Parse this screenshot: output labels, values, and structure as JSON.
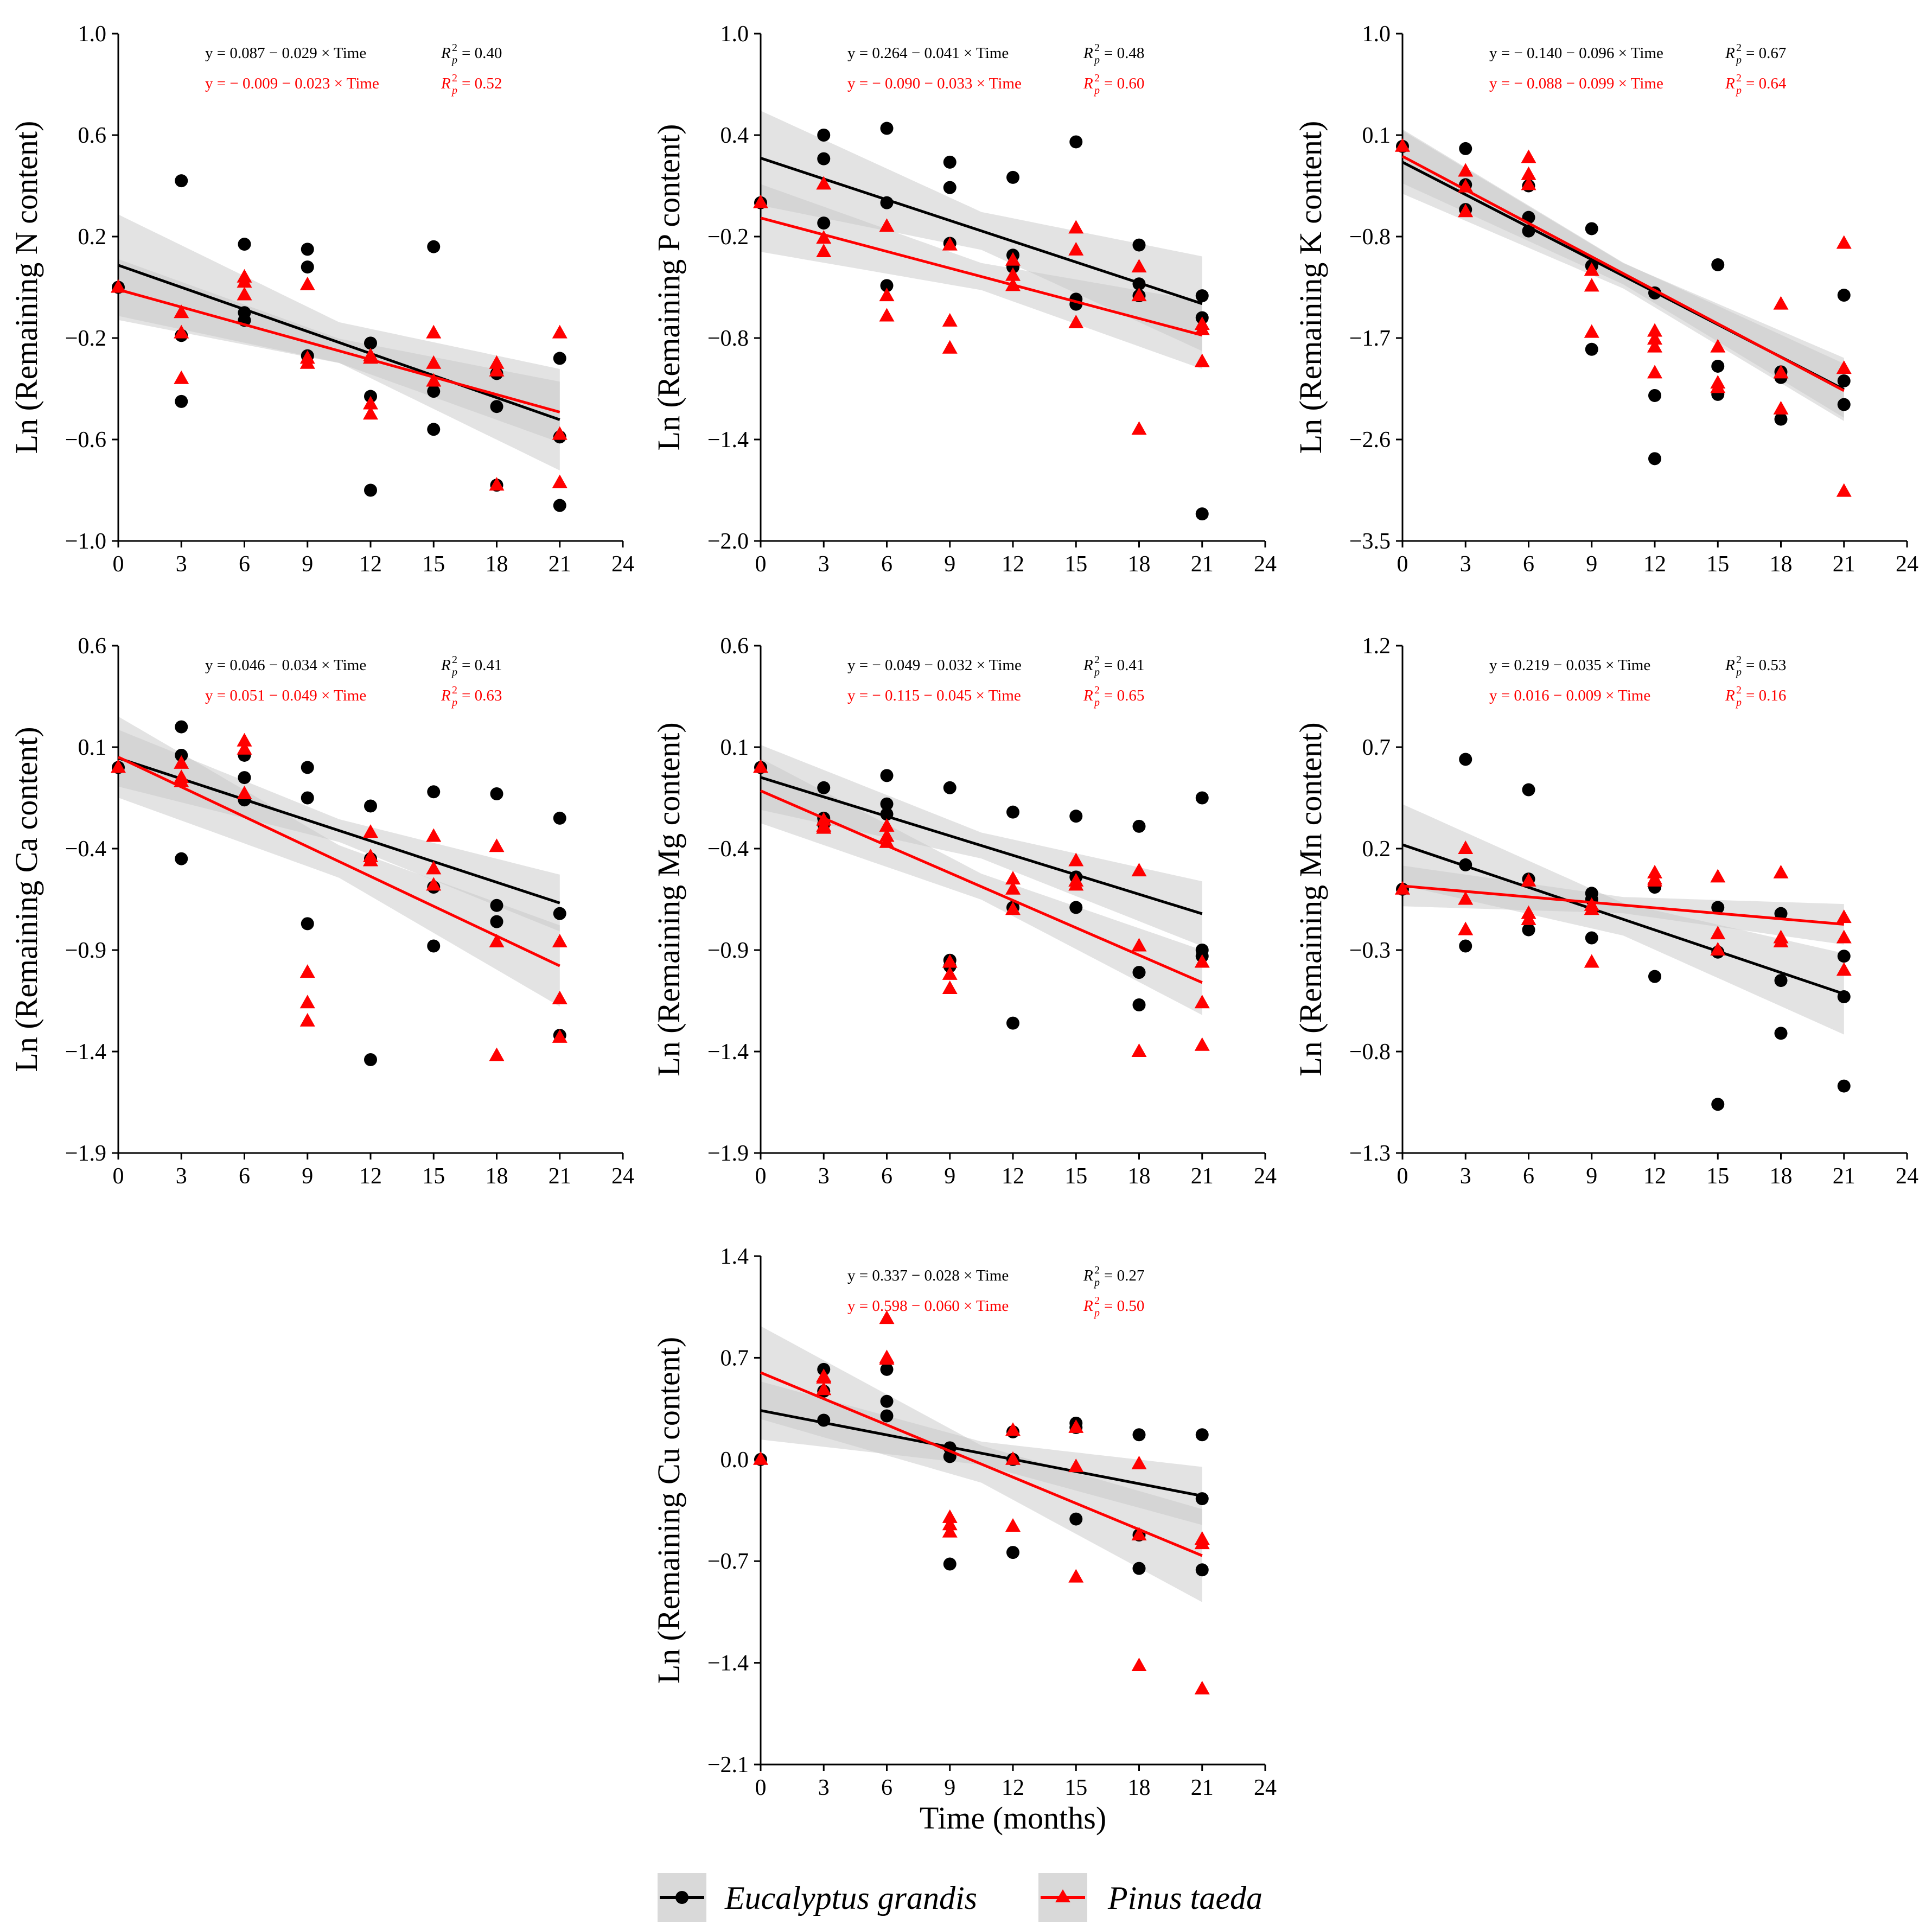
{
  "figure": {
    "x_axis_title": "Time (months)",
    "legend": [
      {
        "label": "Eucalyptus grandis",
        "color": "#000000",
        "marker": "circle"
      },
      {
        "label": "Pinus taeda",
        "color": "#ff0000",
        "marker": "triangle"
      }
    ],
    "colors": {
      "eucalyptus": "#000000",
      "pinus": "#ff0000",
      "ci_band": "#c8c8c8"
    }
  },
  "chart_data": [
    {
      "type": "scatter",
      "ylabel": "Ln (Remaining N content)",
      "ylim": [
        -1.0,
        1.0
      ],
      "yticks": [
        "1.0",
        "0.6",
        "0.2",
        "−0.2",
        "−0.6",
        "−1.0"
      ],
      "ytick_values": [
        1.0,
        0.6,
        0.2,
        -0.2,
        -0.6,
        -1.0
      ],
      "xlim": [
        0,
        24
      ],
      "xticks": [
        "0",
        "3",
        "6",
        "9",
        "12",
        "15",
        "18",
        "21",
        "24"
      ],
      "equations": [
        {
          "series": "Eucalyptus grandis",
          "text": "y = 0.087 − 0.029 × Time",
          "r2": "= 0.40"
        },
        {
          "series": "Pinus taeda",
          "text": "y = − 0.009 − 0.023 × Time",
          "r2": "= 0.52"
        }
      ],
      "series": [
        {
          "name": "Eucalyptus grandis",
          "intercept": 0.087,
          "slope": -0.029,
          "band": 0.2,
          "x": [
            0,
            3,
            3,
            3,
            6,
            6,
            6,
            9,
            9,
            9,
            12,
            12,
            12,
            15,
            15,
            15,
            18,
            18,
            18,
            21,
            21,
            21
          ],
          "y": [
            0,
            0.42,
            -0.19,
            -0.45,
            0.17,
            -0.1,
            -0.13,
            0.15,
            0.08,
            -0.27,
            -0.22,
            -0.43,
            -0.8,
            0.16,
            -0.41,
            -0.56,
            -0.34,
            -0.47,
            -0.78,
            -0.28,
            -0.59,
            -0.86
          ]
        },
        {
          "name": "Pinus taeda",
          "intercept": -0.009,
          "slope": -0.023,
          "band": 0.12,
          "x": [
            0,
            3,
            3,
            3,
            6,
            6,
            6,
            9,
            9,
            9,
            12,
            12,
            12,
            12,
            15,
            15,
            15,
            18,
            18,
            18,
            21,
            21,
            21
          ],
          "y": [
            0,
            -0.1,
            -0.18,
            -0.36,
            0.04,
            0.02,
            -0.03,
            0.01,
            -0.28,
            -0.3,
            -0.27,
            -0.46,
            -0.5,
            -0.28,
            -0.18,
            -0.3,
            -0.37,
            -0.3,
            -0.33,
            -0.78,
            -0.18,
            -0.58,
            -0.77
          ]
        }
      ]
    },
    {
      "type": "scatter",
      "ylabel": "Ln (Remaining P content)",
      "ylim": [
        -2.0,
        1.0
      ],
      "yticks": [
        "1.0",
        "0.4",
        "−0.2",
        "−0.8",
        "−1.4",
        "−2.0"
      ],
      "ytick_values": [
        1.0,
        0.4,
        -0.2,
        -0.8,
        -1.4,
        -2.0
      ],
      "xlim": [
        0,
        24
      ],
      "xticks": [
        "0",
        "3",
        "6",
        "9",
        "12",
        "15",
        "18",
        "21",
        "24"
      ],
      "equations": [
        {
          "series": "Eucalyptus grandis",
          "text": "y = 0.264 − 0.041 × Time",
          "r2": "= 0.48"
        },
        {
          "series": "Pinus taeda",
          "text": "y = − 0.090 − 0.033 × Time",
          "r2": "= 0.60"
        }
      ],
      "series": [
        {
          "name": "Eucalyptus grandis",
          "intercept": 0.264,
          "slope": -0.041,
          "band": 0.28,
          "x": [
            0,
            3,
            3,
            3,
            6,
            6,
            6,
            9,
            9,
            9,
            12,
            12,
            12,
            15,
            15,
            15,
            18,
            18,
            18,
            21,
            21,
            21
          ],
          "y": [
            0,
            0.4,
            0.26,
            -0.12,
            0.44,
            0.0,
            -0.49,
            0.24,
            0.09,
            -0.24,
            0.15,
            -0.31,
            -0.38,
            0.36,
            -0.57,
            -0.6,
            -0.25,
            -0.48,
            -0.55,
            -0.55,
            -0.68,
            -1.84
          ]
        },
        {
          "name": "Pinus taeda",
          "intercept": -0.09,
          "slope": -0.033,
          "band": 0.2,
          "x": [
            0,
            3,
            3,
            3,
            6,
            6,
            6,
            9,
            9,
            9,
            12,
            12,
            12,
            15,
            15,
            15,
            18,
            18,
            18,
            21,
            21,
            21
          ],
          "y": [
            0,
            0.11,
            -0.21,
            -0.29,
            -0.14,
            -0.55,
            -0.67,
            -0.25,
            -0.7,
            -0.86,
            -0.34,
            -0.49,
            -0.43,
            -0.15,
            -0.28,
            -0.71,
            -0.38,
            -0.55,
            -1.34,
            -0.72,
            -0.75,
            -0.94
          ]
        }
      ]
    },
    {
      "type": "scatter",
      "ylabel": "Ln (Remaining K content)",
      "ylim": [
        -3.5,
        1.0
      ],
      "yticks": [
        "1.0",
        "0.1",
        "−0.8",
        "−1.7",
        "−2.6",
        "−3.5"
      ],
      "ytick_values": [
        1.0,
        0.1,
        -0.8,
        -1.7,
        -2.6,
        -3.5
      ],
      "xlim": [
        0,
        24
      ],
      "xticks": [
        "0",
        "3",
        "6",
        "9",
        "12",
        "15",
        "18",
        "21",
        "24"
      ],
      "equations": [
        {
          "series": "Eucalyptus grandis",
          "text": "y = − 0.140 − 0.096 × Time",
          "r2": "= 0.67"
        },
        {
          "series": "Pinus taeda",
          "text": "y = − 0.088 − 0.099 × Time",
          "r2": "= 0.64"
        }
      ],
      "series": [
        {
          "name": "Eucalyptus grandis",
          "intercept": -0.14,
          "slope": -0.096,
          "band": 0.28,
          "x": [
            0,
            3,
            3,
            3,
            6,
            6,
            6,
            9,
            9,
            9,
            12,
            12,
            12,
            15,
            15,
            15,
            18,
            18,
            18,
            21,
            21,
            21
          ],
          "y": [
            0,
            -0.02,
            -0.34,
            -0.56,
            -0.35,
            -0.63,
            -0.75,
            -0.73,
            -1.06,
            -1.8,
            -1.3,
            -2.21,
            -2.77,
            -1.05,
            -1.95,
            -2.2,
            -2.0,
            -2.05,
            -2.42,
            -1.32,
            -2.08,
            -2.29
          ]
        },
        {
          "name": "Pinus taeda",
          "intercept": -0.088,
          "slope": -0.099,
          "band": 0.24,
          "x": [
            0,
            3,
            3,
            3,
            6,
            6,
            6,
            9,
            9,
            9,
            12,
            12,
            12,
            12,
            15,
            15,
            15,
            18,
            18,
            18,
            21,
            21,
            21
          ],
          "y": [
            0,
            -0.22,
            -0.36,
            -0.58,
            -0.1,
            -0.25,
            -0.34,
            -1.1,
            -1.24,
            -1.65,
            -1.64,
            -1.71,
            -2.01,
            -1.78,
            -1.78,
            -2.1,
            -2.14,
            -1.4,
            -2.01,
            -2.33,
            -0.86,
            -1.97,
            -3.06
          ]
        }
      ]
    },
    {
      "type": "scatter",
      "ylabel": "Ln (Remaining Ca content)",
      "ylim": [
        -1.9,
        0.6
      ],
      "yticks": [
        "0.6",
        "0.1",
        "−0.4",
        "−0.9",
        "−1.4",
        "−1.9"
      ],
      "ytick_values": [
        0.6,
        0.1,
        -0.4,
        -0.9,
        -1.4,
        -1.9
      ],
      "xlim": [
        0,
        24
      ],
      "xticks": [
        "0",
        "3",
        "6",
        "9",
        "12",
        "15",
        "18",
        "21",
        "24"
      ],
      "equations": [
        {
          "series": "Eucalyptus grandis",
          "text": "y = 0.046 − 0.034 × Time",
          "r2": "= 0.41"
        },
        {
          "series": "Pinus taeda",
          "text": "y = 0.051 − 0.049 × Time",
          "r2": "= 0.63"
        }
      ],
      "series": [
        {
          "name": "Eucalyptus grandis",
          "intercept": 0.046,
          "slope": -0.034,
          "band": 0.14,
          "x": [
            0,
            3,
            3,
            3,
            6,
            6,
            6,
            9,
            9,
            9,
            12,
            12,
            12,
            15,
            15,
            15,
            18,
            18,
            18,
            21,
            21,
            21
          ],
          "y": [
            0,
            0.2,
            0.06,
            -0.45,
            0.06,
            -0.05,
            -0.16,
            0.0,
            -0.15,
            -0.77,
            -0.19,
            -0.45,
            -1.44,
            -0.12,
            -0.59,
            -0.88,
            -0.13,
            -0.68,
            -0.76,
            -0.25,
            -0.72,
            -1.32
          ]
        },
        {
          "name": "Pinus taeda",
          "intercept": 0.051,
          "slope": -0.049,
          "band": 0.2,
          "x": [
            0,
            3,
            3,
            3,
            6,
            6,
            6,
            9,
            9,
            9,
            12,
            12,
            12,
            15,
            15,
            15,
            18,
            18,
            18,
            21,
            21,
            21
          ],
          "y": [
            0,
            0.02,
            -0.05,
            -0.07,
            0.13,
            0.09,
            -0.13,
            -1.01,
            -1.16,
            -1.25,
            -0.32,
            -0.46,
            -0.44,
            -0.34,
            -0.5,
            -0.58,
            -0.39,
            -0.86,
            -1.42,
            -0.86,
            -1.14,
            -1.33
          ]
        }
      ]
    },
    {
      "type": "scatter",
      "ylabel": "Ln (Remaining Mg content)",
      "ylim": [
        -1.9,
        0.6
      ],
      "yticks": [
        "0.6",
        "0.1",
        "−0.4",
        "−0.9",
        "−1.4",
        "−1.9"
      ],
      "ytick_values": [
        0.6,
        0.1,
        -0.4,
        -0.9,
        -1.4,
        -1.9
      ],
      "xlim": [
        0,
        24
      ],
      "xticks": [
        "0",
        "3",
        "6",
        "9",
        "12",
        "15",
        "18",
        "21",
        "24"
      ],
      "equations": [
        {
          "series": "Eucalyptus grandis",
          "text": "y = − 0.049 − 0.032 × Time",
          "r2": "= 0.41"
        },
        {
          "series": "Pinus taeda",
          "text": "y = − 0.115 − 0.045 × Time",
          "r2": "= 0.65"
        }
      ],
      "series": [
        {
          "name": "Eucalyptus grandis",
          "intercept": -0.049,
          "slope": -0.032,
          "band": 0.16,
          "x": [
            0,
            3,
            3,
            3,
            6,
            6,
            6,
            9,
            9,
            9,
            12,
            12,
            12,
            15,
            15,
            15,
            18,
            18,
            18,
            21,
            21,
            21
          ],
          "y": [
            0,
            -0.1,
            -0.25,
            -0.28,
            -0.04,
            -0.18,
            -0.23,
            -0.1,
            -0.95,
            -0.98,
            -0.22,
            -0.69,
            -1.26,
            -0.24,
            -0.54,
            -0.69,
            -0.29,
            -1.01,
            -1.17,
            -0.15,
            -0.9,
            -0.93
          ]
        },
        {
          "name": "Pinus taeda",
          "intercept": -0.115,
          "slope": -0.045,
          "band": 0.16,
          "x": [
            0,
            3,
            3,
            3,
            6,
            6,
            6,
            9,
            9,
            9,
            12,
            12,
            12,
            15,
            15,
            15,
            18,
            18,
            18,
            21,
            21,
            21
          ],
          "y": [
            0,
            -0.26,
            -0.29,
            -0.3,
            -0.29,
            -0.34,
            -0.37,
            -0.96,
            -1.02,
            -1.09,
            -0.55,
            -0.6,
            -0.7,
            -0.46,
            -0.56,
            -0.58,
            -0.51,
            -0.88,
            -1.4,
            -0.96,
            -1.16,
            -1.37
          ]
        }
      ]
    },
    {
      "type": "scatter",
      "ylabel": "Ln (Remaining Mn content)",
      "ylim": [
        -1.3,
        1.2
      ],
      "yticks": [
        "1.2",
        "0.7",
        "0.2",
        "−0.3",
        "−0.8",
        "−1.3"
      ],
      "ytick_values": [
        1.2,
        0.7,
        0.2,
        -0.3,
        -0.8,
        -1.3
      ],
      "xlim": [
        0,
        24
      ],
      "xticks": [
        "0",
        "3",
        "6",
        "9",
        "12",
        "15",
        "18",
        "21",
        "24"
      ],
      "equations": [
        {
          "series": "Eucalyptus grandis",
          "text": "y = 0.219 − 0.035 × Time",
          "r2": "= 0.53"
        },
        {
          "series": "Pinus taeda",
          "text": "y = 0.016 − 0.009 × Time",
          "r2": "= 0.16"
        }
      ],
      "series": [
        {
          "name": "Eucalyptus grandis",
          "intercept": 0.219,
          "slope": -0.035,
          "band": 0.2,
          "x": [
            0,
            3,
            3,
            3,
            6,
            6,
            6,
            9,
            9,
            9,
            12,
            12,
            12,
            15,
            15,
            15,
            18,
            18,
            18,
            21,
            21,
            21
          ],
          "y": [
            0,
            0.64,
            0.12,
            -0.28,
            0.49,
            0.05,
            -0.2,
            -0.02,
            -0.05,
            -0.24,
            0.01,
            0.02,
            -0.43,
            -0.09,
            -0.31,
            -1.06,
            -0.12,
            -0.45,
            -0.71,
            -0.33,
            -0.53,
            -0.97
          ]
        },
        {
          "name": "Pinus taeda",
          "intercept": 0.016,
          "slope": -0.009,
          "band": 0.1,
          "x": [
            0,
            3,
            3,
            3,
            6,
            6,
            6,
            9,
            9,
            9,
            12,
            12,
            12,
            15,
            15,
            15,
            18,
            18,
            18,
            21,
            21,
            21
          ],
          "y": [
            0,
            0.2,
            -0.05,
            -0.2,
            -0.12,
            -0.15,
            0.04,
            -0.08,
            -0.1,
            -0.36,
            0.05,
            0.08,
            0.04,
            0.06,
            -0.22,
            -0.3,
            0.08,
            -0.24,
            -0.26,
            -0.14,
            -0.24,
            -0.4
          ]
        }
      ]
    },
    {
      "type": "scatter",
      "ylabel": "Ln (Remaining Cu content)",
      "ylim": [
        -2.1,
        1.4
      ],
      "yticks": [
        "1.4",
        "0.7",
        "0.0",
        "−0.7",
        "−1.4",
        "−2.1"
      ],
      "ytick_values": [
        1.4,
        0.7,
        0.0,
        -0.7,
        -1.4,
        -2.1
      ],
      "xlim": [
        0,
        24
      ],
      "xticks": [
        "0",
        "3",
        "6",
        "9",
        "12",
        "15",
        "18",
        "21",
        "24"
      ],
      "show_x_title": true,
      "equations": [
        {
          "series": "Eucalyptus grandis",
          "text": "y = 0.337 − 0.028 × Time",
          "r2": "= 0.27"
        },
        {
          "series": "Pinus taeda",
          "text": "y = 0.598 − 0.060 × Time",
          "r2": "= 0.50"
        }
      ],
      "series": [
        {
          "name": "Eucalyptus grandis",
          "intercept": 0.337,
          "slope": -0.028,
          "band": 0.2,
          "x": [
            0,
            3,
            3,
            3,
            6,
            6,
            6,
            9,
            9,
            9,
            12,
            12,
            12,
            15,
            15,
            15,
            18,
            18,
            18,
            21,
            21,
            21
          ],
          "y": [
            0,
            0.62,
            0.47,
            0.27,
            0.62,
            0.4,
            0.3,
            0.08,
            0.02,
            -0.72,
            0.19,
            0.0,
            -0.64,
            0.25,
            0.22,
            -0.41,
            0.17,
            -0.52,
            -0.75,
            0.17,
            -0.27,
            -0.76
          ]
        },
        {
          "name": "Pinus taeda",
          "intercept": 0.598,
          "slope": -0.06,
          "band": 0.32,
          "x": [
            0,
            3,
            3,
            3,
            6,
            6,
            6,
            9,
            9,
            9,
            12,
            12,
            12,
            15,
            15,
            15,
            18,
            18,
            18,
            21,
            21,
            21
          ],
          "y": [
            0,
            0.57,
            0.56,
            0.48,
            0.97,
            0.7,
            0.69,
            -0.4,
            -0.45,
            -0.5,
            0.2,
            0.0,
            -0.46,
            0.22,
            -0.05,
            -0.81,
            -0.03,
            -0.52,
            -1.42,
            -0.55,
            -0.58,
            -1.58
          ]
        }
      ]
    }
  ]
}
